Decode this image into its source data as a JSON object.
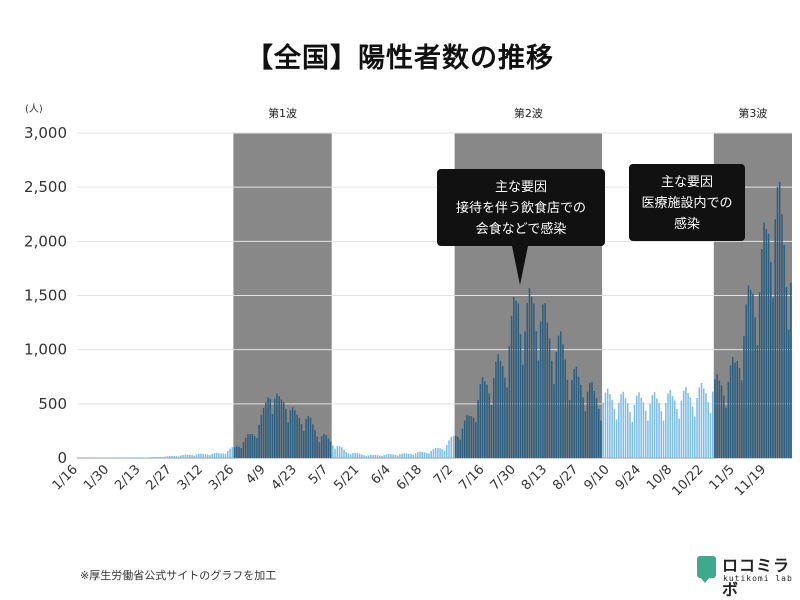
{
  "title": "【全国】陽性者数の推移",
  "footnote": "※厚生労働省公式サイトのグラフを加工",
  "logo": {
    "name": "ロコミラボ",
    "sub": "kutikomi lab",
    "color": "#3fa98b"
  },
  "colors": {
    "bar_light": "#7dbde8",
    "bar_dark": "#2c5f80",
    "shade": "#888888",
    "callout_bg": "#111111",
    "callout_text": "#ffffff"
  },
  "chart_data": {
    "type": "bar",
    "ylabel": "(人)",
    "ylim": [
      0,
      3000
    ],
    "yticks": [
      0,
      500,
      1000,
      1500,
      2000,
      2500,
      3000
    ],
    "ytick_labels": [
      "0",
      "500",
      "1,000",
      "1,500",
      "2,000",
      "2,500",
      "3,000"
    ],
    "x_start": "1/16",
    "x_end": "11/30",
    "xtick_labels": [
      "1/16",
      "1/30",
      "2/13",
      "2/27",
      "3/12",
      "3/26",
      "4/9",
      "4/23",
      "5/7",
      "5/21",
      "6/4",
      "6/18",
      "7/2",
      "7/16",
      "7/30",
      "8/13",
      "8/27",
      "9/10",
      "9/24",
      "10/8",
      "10/22",
      "11/5",
      "11/19"
    ],
    "waves": [
      {
        "label": "第1波",
        "start": "3/26",
        "end": "5/8"
      },
      {
        "label": "第2波",
        "start": "7/3",
        "end": "9/6"
      },
      {
        "label": "第3波",
        "start": "10/27",
        "end": "11/30"
      }
    ],
    "annotations": [
      {
        "lines": [
          "主な要因",
          "接待を伴う飲食店での",
          "会食などで感染"
        ],
        "points_to": "7/30"
      },
      {
        "lines": [
          "主な要因",
          "医療施設内での",
          "感染"
        ],
        "points_to": "10/27"
      }
    ],
    "series_anchors": [
      [
        "1/16",
        0
      ],
      [
        "2/20",
        8
      ],
      [
        "3/8",
        35
      ],
      [
        "3/20",
        45
      ],
      [
        "3/26",
        100
      ],
      [
        "3/31",
        180
      ],
      [
        "4/4",
        260
      ],
      [
        "4/8",
        420
      ],
      [
        "4/11",
        700
      ],
      [
        "4/15",
        520
      ],
      [
        "4/18",
        580
      ],
      [
        "4/22",
        400
      ],
      [
        "4/27",
        400
      ],
      [
        "5/2",
        250
      ],
      [
        "5/7",
        180
      ],
      [
        "5/15",
        60
      ],
      [
        "5/25",
        25
      ],
      [
        "6/10",
        40
      ],
      [
        "6/20",
        60
      ],
      [
        "6/28",
        110
      ],
      [
        "7/2",
        200
      ],
      [
        "7/6",
        300
      ],
      [
        "7/10",
        420
      ],
      [
        "7/14",
        650
      ],
      [
        "7/20",
        820
      ],
      [
        "7/25",
        950
      ],
      [
        "7/29",
        1350
      ],
      [
        "7/31",
        1550
      ],
      [
        "8/3",
        1300
      ],
      [
        "8/7",
        1550
      ],
      [
        "8/9",
        1450
      ],
      [
        "8/13",
        1250
      ],
      [
        "8/16",
        1100
      ],
      [
        "8/20",
        1050
      ],
      [
        "8/24",
        800
      ],
      [
        "8/30",
        700
      ],
      [
        "9/6",
        560
      ],
      [
        "9/10",
        590
      ],
      [
        "9/15",
        560
      ],
      [
        "9/20",
        540
      ],
      [
        "9/25",
        560
      ],
      [
        "10/1",
        550
      ],
      [
        "10/10",
        580
      ],
      [
        "10/20",
        620
      ],
      [
        "10/26",
        680
      ],
      [
        "11/1",
        750
      ],
      [
        "11/5",
        880
      ],
      [
        "11/9",
        1250
      ],
      [
        "11/13",
        1650
      ],
      [
        "11/16",
        1700
      ],
      [
        "11/20",
        2250
      ],
      [
        "11/23",
        2450
      ],
      [
        "11/26",
        2250
      ],
      [
        "11/30",
        1800
      ]
    ]
  }
}
